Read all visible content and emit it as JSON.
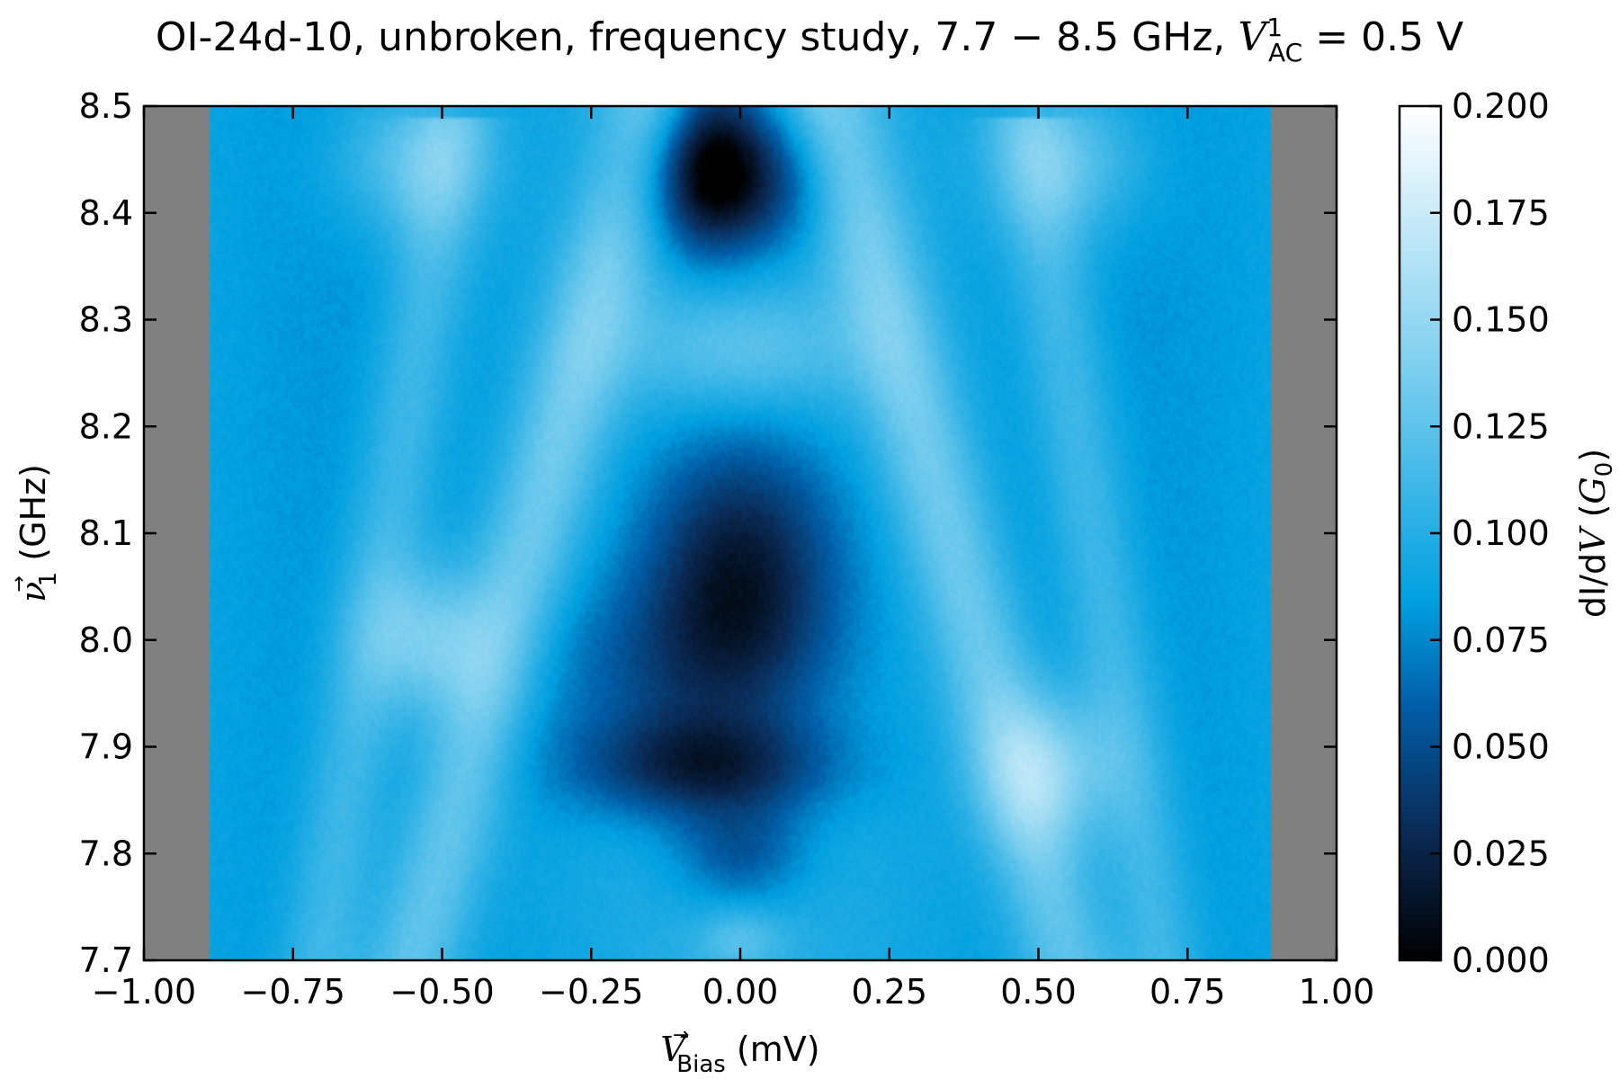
{
  "chart_data": {
    "type": "heatmap",
    "title": {
      "prefix": "OI-24d-10, unbroken, frequency study, 7.7 − 8.5 GHz, ",
      "var": "V",
      "sup": "1",
      "sub": "AC",
      "suffix": " = 0.5 V"
    },
    "xlabel": {
      "var": "V",
      "arrow": "→",
      "sub": "Bias",
      "unit": " (mV)"
    },
    "ylabel": {
      "var": "ν",
      "arrow": "→",
      "sub": "1",
      "unit": " (GHz)"
    },
    "colorbar_label": {
      "text": "dI/d",
      "var": "V",
      "open": " (",
      "g": "G",
      "sub": "0",
      "close": ")"
    },
    "xlim": [
      -1.0,
      1.0
    ],
    "ylim": [
      7.7,
      8.5
    ],
    "clim": [
      0.0,
      0.2
    ],
    "x_ticks": [
      -1.0,
      -0.75,
      -0.5,
      -0.25,
      0.0,
      0.25,
      0.5,
      0.75,
      1.0
    ],
    "x_tick_labels": [
      "−1.00",
      "−0.75",
      "−0.50",
      "−0.25",
      "0.00",
      "0.25",
      "0.50",
      "0.75",
      "1.00"
    ],
    "y_ticks": [
      7.7,
      7.8,
      7.9,
      8.0,
      8.1,
      8.2,
      8.3,
      8.4,
      8.5
    ],
    "y_tick_labels": [
      "7.7",
      "7.8",
      "7.9",
      "8.0",
      "8.1",
      "8.2",
      "8.3",
      "8.4",
      "8.5"
    ],
    "colorbar_ticks": [
      0.0,
      0.025,
      0.05,
      0.075,
      0.1,
      0.125,
      0.15,
      0.175,
      0.2
    ],
    "colorbar_tick_labels": [
      "0.000",
      "0.025",
      "0.050",
      "0.075",
      "0.100",
      "0.125",
      "0.150",
      "0.175",
      "0.200"
    ],
    "data_x_range": [
      -0.89,
      0.89
    ],
    "background_color": "#808080",
    "colormap": [
      "#000000",
      "#0a2a55",
      "#005fa8",
      "#00a0e0",
      "#7fd0ef",
      "#ffffff"
    ],
    "colormap_stops": [
      0.0,
      0.15,
      0.3,
      0.42,
      0.7,
      1.0
    ],
    "dark_lobes": [
      {
        "x": -0.02,
        "y": 8.43,
        "sx": 0.11,
        "sy": 0.05,
        "depth": 0.075
      },
      {
        "x": -0.05,
        "y": 8.47,
        "sx": 0.06,
        "sy": 0.07,
        "depth": 0.045
      },
      {
        "x": 0.0,
        "y": 8.07,
        "sx": 0.12,
        "sy": 0.09,
        "depth": 0.08
      },
      {
        "x": -0.1,
        "y": 7.97,
        "sx": 0.17,
        "sy": 0.06,
        "depth": 0.035
      },
      {
        "x": -0.06,
        "y": 7.88,
        "sx": 0.15,
        "sy": 0.035,
        "depth": 0.065
      },
      {
        "x": 0.0,
        "y": 7.8,
        "sx": 0.08,
        "sy": 0.035,
        "depth": 0.04
      }
    ],
    "bright_bands": [
      {
        "y0": 7.7,
        "x0": 0.55,
        "y1": 8.5,
        "x1": 0.15,
        "w": 0.06,
        "amp": 0.045
      },
      {
        "y0": 7.7,
        "x0": -0.55,
        "y1": 8.5,
        "x1": -0.15,
        "w": 0.06,
        "amp": 0.045
      },
      {
        "y0": 7.72,
        "x0": 0.7,
        "y1": 8.42,
        "x1": 0.5,
        "w": 0.05,
        "amp": 0.03
      },
      {
        "y0": 7.72,
        "x0": -0.7,
        "y1": 8.42,
        "x1": -0.5,
        "w": 0.05,
        "amp": 0.03
      }
    ],
    "bright_spots": [
      {
        "x": -0.52,
        "y": 8.0,
        "sx": 0.08,
        "sy": 0.05,
        "amp": 0.05
      },
      {
        "x": 0.52,
        "y": 7.88,
        "sx": 0.08,
        "sy": 0.05,
        "amp": 0.05
      },
      {
        "x": -0.55,
        "y": 8.45,
        "sx": 0.09,
        "sy": 0.05,
        "amp": 0.04
      },
      {
        "x": 0.55,
        "y": 8.45,
        "sx": 0.09,
        "sy": 0.05,
        "amp": 0.04
      },
      {
        "x": 0.0,
        "y": 8.27,
        "sx": 0.14,
        "sy": 0.04,
        "amp": 0.03
      },
      {
        "x": 0.0,
        "y": 7.72,
        "sx": 0.05,
        "sy": 0.02,
        "amp": 0.025
      }
    ]
  }
}
